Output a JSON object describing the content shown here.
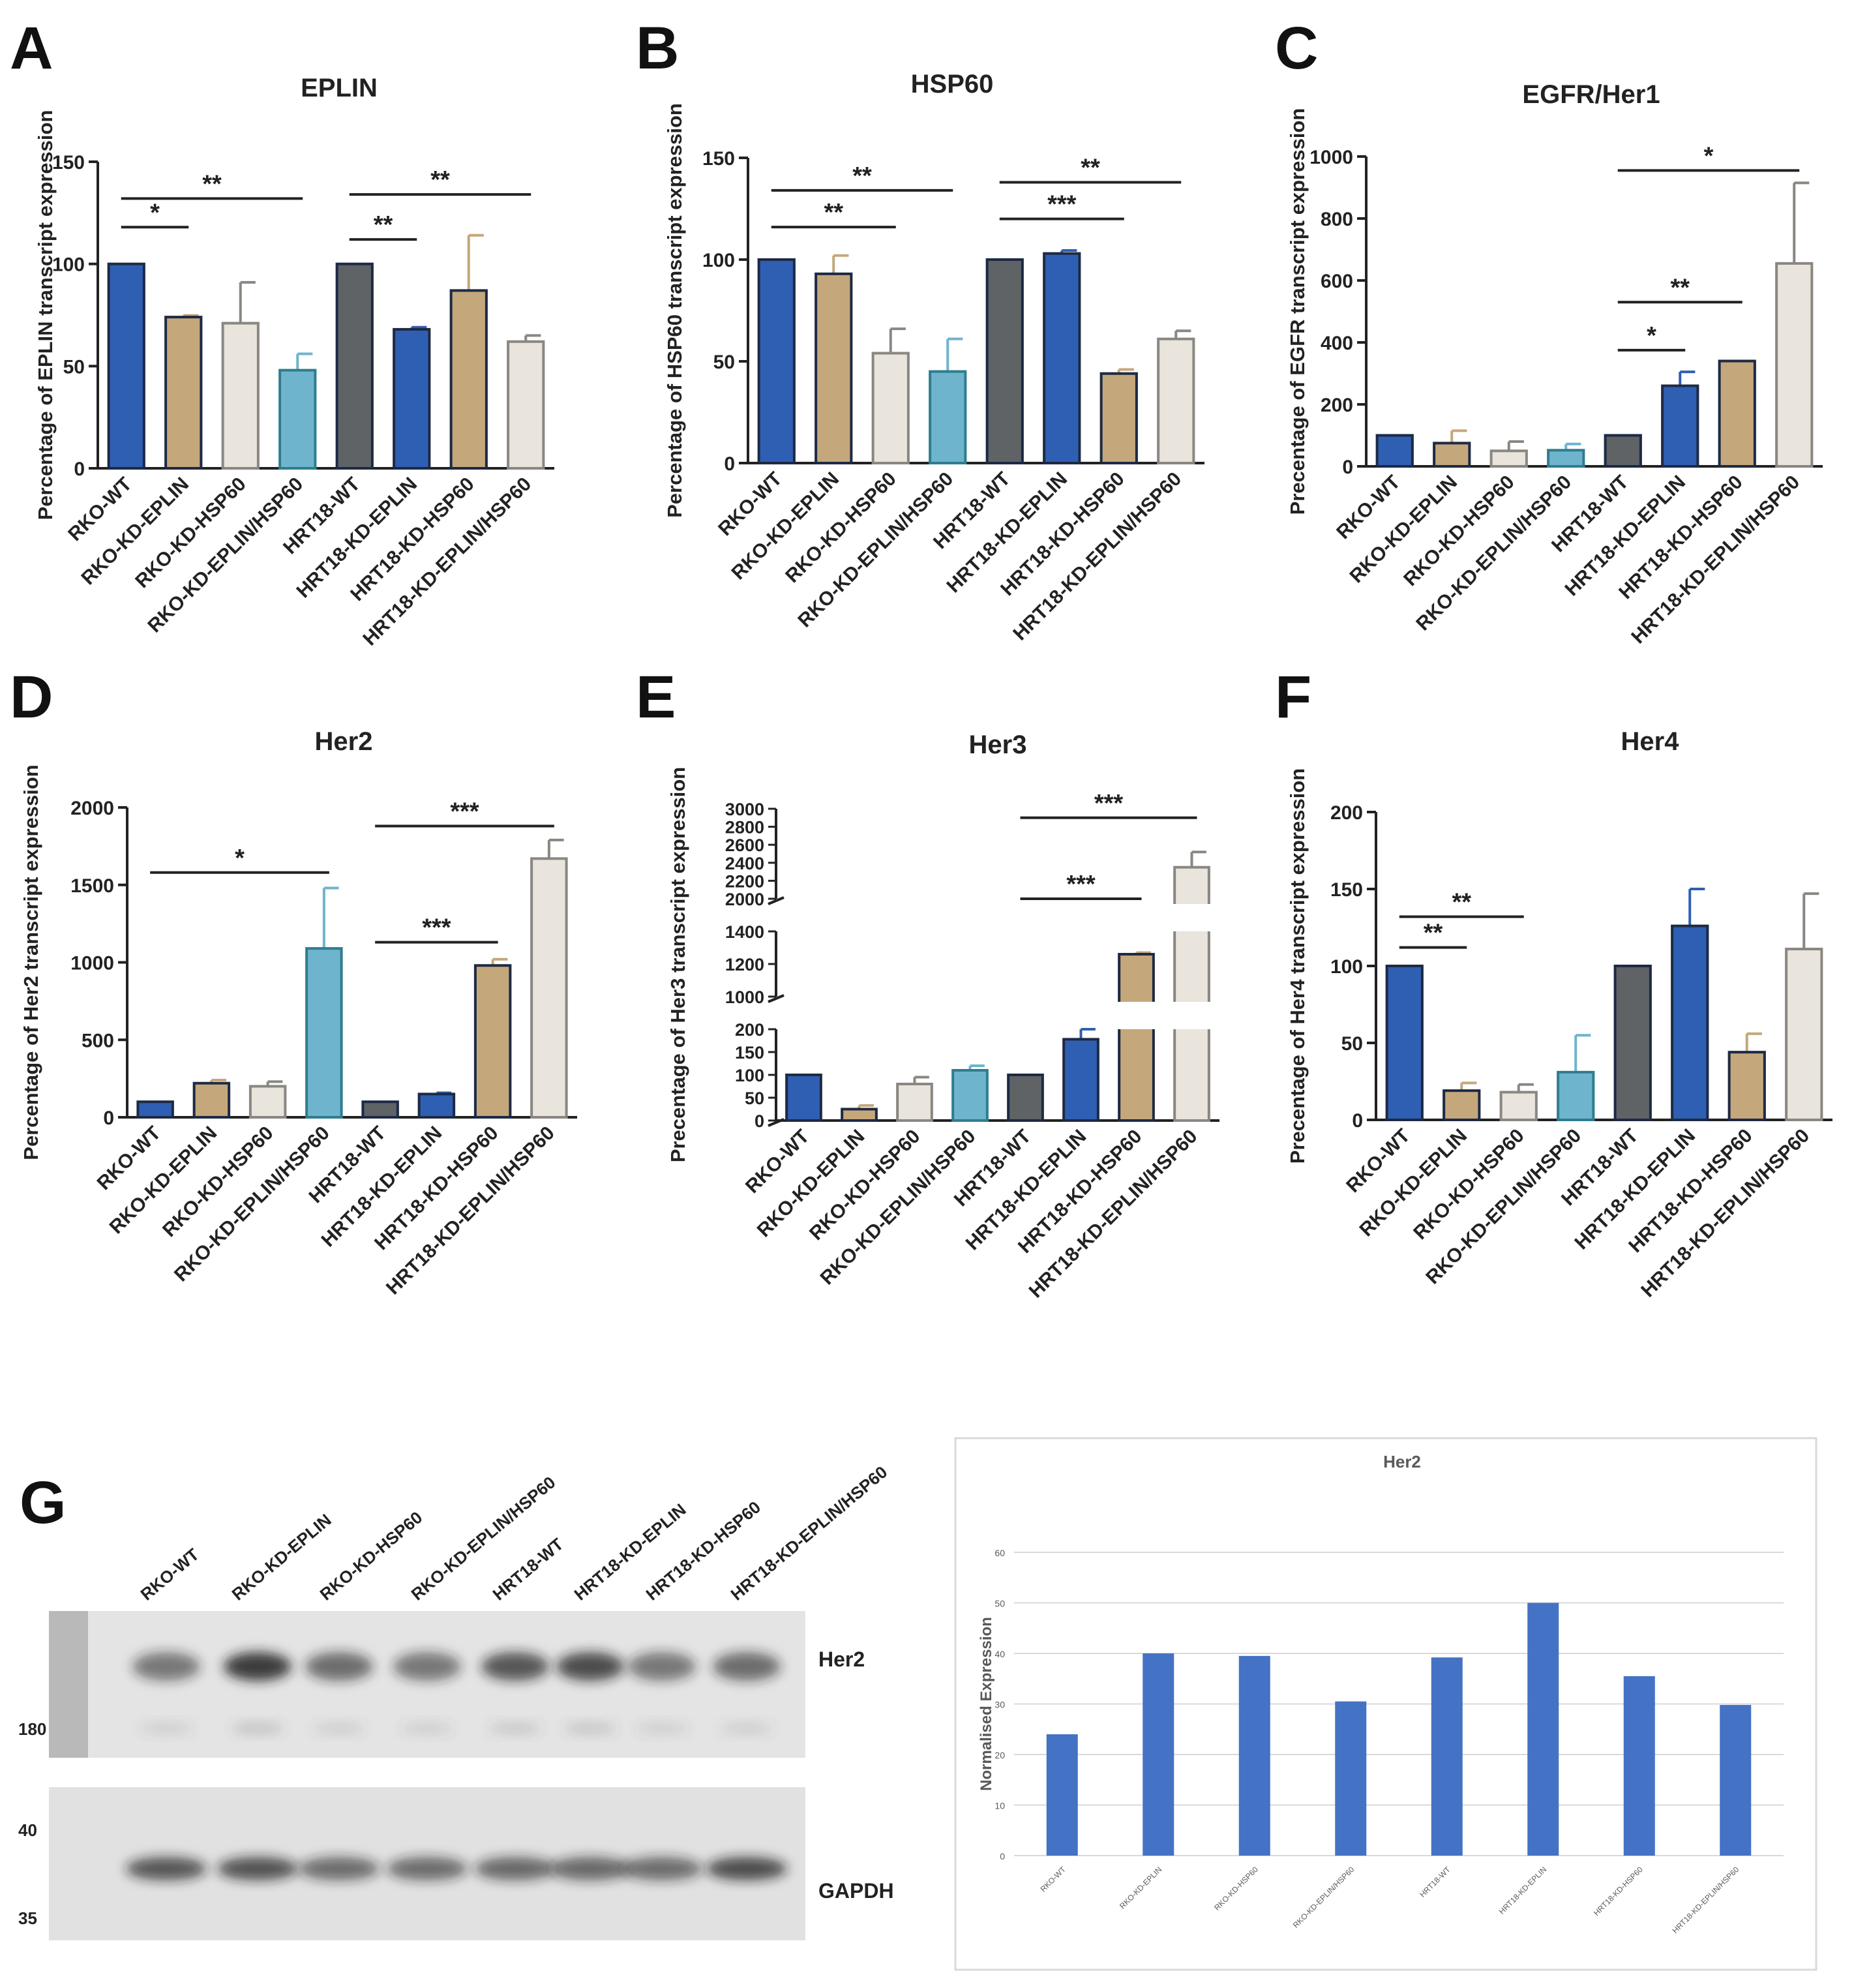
{
  "colors": {
    "blue": "#2f5fb3",
    "tan": "#c4a77b",
    "cream": "#e9e4dc",
    "cyan": "#6fb4cd",
    "gray": "#5f6366",
    "excel_blue": "#4472c4"
  },
  "bar_palette": [
    "blue",
    "tan",
    "cream",
    "cyan",
    "gray",
    "blue",
    "tan",
    "cream"
  ],
  "categories": [
    "RKO-WT",
    "RKO-KD-EPLIN",
    "RKO-KD-HSP60",
    "RKO-KD-EPLIN/HSP60",
    "HRT18-WT",
    "HRT18-KD-EPLIN",
    "HRT18-KD-HSP60",
    "HRT18-KD-EPLIN/HSP60"
  ],
  "chart_data": [
    {
      "panel": "A",
      "type": "bar",
      "title": "EPLIN",
      "ylabel": "Percentage of EPLIN transcript expression",
      "ylim": [
        0,
        150
      ],
      "yticks": [
        0,
        50,
        100,
        150
      ],
      "values": [
        100,
        74,
        71,
        48,
        100,
        68,
        87,
        62
      ],
      "errors": [
        0,
        0.8,
        20,
        8,
        0,
        1,
        27,
        3
      ],
      "significance": [
        {
          "from": 0,
          "to": 1,
          "label": "*",
          "level": 118
        },
        {
          "from": 0,
          "to": 3,
          "label": "**",
          "level": 132
        },
        {
          "from": 4,
          "to": 5,
          "label": "**",
          "level": 112
        },
        {
          "from": 4,
          "to": 7,
          "label": "**",
          "level": 134
        }
      ]
    },
    {
      "panel": "B",
      "type": "bar",
      "title": "HSP60",
      "ylabel": "Percentage of HSP60 transcript expression",
      "ylim": [
        0,
        150
      ],
      "yticks": [
        0,
        50,
        100,
        150
      ],
      "values": [
        100,
        93,
        54,
        45,
        100,
        103,
        44,
        61
      ],
      "errors": [
        0,
        9,
        12,
        16,
        0,
        1.5,
        2,
        4
      ],
      "significance": [
        {
          "from": 0,
          "to": 2,
          "label": "**",
          "level": 116
        },
        {
          "from": 0,
          "to": 3,
          "label": "**",
          "level": 134
        },
        {
          "from": 4,
          "to": 6,
          "label": "***",
          "level": 120
        },
        {
          "from": 4,
          "to": 7,
          "label": "**",
          "level": 138
        }
      ]
    },
    {
      "panel": "C",
      "type": "bar",
      "title": "EGFR/Her1",
      "ylabel": "Precentage of EGFR transcript expression",
      "ylim": [
        0,
        1000
      ],
      "yticks": [
        0,
        200,
        400,
        600,
        800,
        1000
      ],
      "values": [
        100,
        75,
        50,
        52,
        100,
        260,
        340,
        655
      ],
      "errors": [
        0,
        40,
        30,
        20,
        0,
        45,
        0,
        260
      ],
      "significance": [
        {
          "from": 4,
          "to": 5,
          "label": "*",
          "level": 375
        },
        {
          "from": 4,
          "to": 6,
          "label": "**",
          "level": 530
        },
        {
          "from": 4,
          "to": 7,
          "label": "*",
          "level": 955
        }
      ]
    },
    {
      "panel": "D",
      "type": "bar",
      "title": "Her2",
      "ylabel": "Percentage of Her2 transcript expression",
      "ylim": [
        0,
        2000
      ],
      "yticks": [
        0,
        500,
        1000,
        1500,
        2000
      ],
      "values": [
        100,
        220,
        200,
        1090,
        100,
        150,
        980,
        1670
      ],
      "errors": [
        0,
        20,
        30,
        390,
        0,
        8,
        40,
        120
      ],
      "significance": [
        {
          "from": 0,
          "to": 3,
          "label": "*",
          "level": 1580
        },
        {
          "from": 4,
          "to": 6,
          "label": "***",
          "level": 1130
        },
        {
          "from": 4,
          "to": 7,
          "label": "***",
          "level": 1880
        }
      ]
    },
    {
      "panel": "E",
      "type": "bar",
      "title": "Her3",
      "ylabel": "Precentage of Her3 transcript expression",
      "broken_axis": true,
      "yticks": [
        0,
        50,
        100,
        150,
        200,
        1000,
        1200,
        1400,
        2000,
        2200,
        2400,
        2600,
        2800,
        3000
      ],
      "values": [
        100,
        25,
        80,
        110,
        100,
        178,
        1260,
        2350
      ],
      "errors": [
        0,
        8,
        15,
        10,
        0,
        22,
        10,
        170
      ],
      "significance": [
        {
          "from": 4,
          "to": 6,
          "label": "***",
          "level": 1480
        },
        {
          "from": 4,
          "to": 7,
          "label": "***",
          "level": 2900
        }
      ]
    },
    {
      "panel": "F",
      "type": "bar",
      "title": "Her4",
      "ylabel": "Precentage of Her4 transcript expression",
      "ylim": [
        0,
        200
      ],
      "yticks": [
        0,
        50,
        100,
        150,
        200
      ],
      "values": [
        100,
        19,
        18,
        31,
        100,
        126,
        44,
        111
      ],
      "errors": [
        0,
        5,
        5,
        24,
        0,
        24,
        12,
        36
      ],
      "significance": [
        {
          "from": 0,
          "to": 1,
          "label": "**",
          "level": 112
        },
        {
          "from": 0,
          "to": 2,
          "label": "**",
          "level": 132
        }
      ]
    },
    {
      "panel": "G-right",
      "type": "bar",
      "title": "Her2",
      "ylabel": "Normalised Expression",
      "ylim": [
        0,
        60
      ],
      "yticks": [
        0,
        10,
        20,
        30,
        40,
        50,
        60
      ],
      "values": [
        24,
        40,
        39.5,
        30.5,
        39.2,
        50,
        35.5,
        29.8
      ]
    }
  ],
  "panel_letters": [
    "A",
    "B",
    "C",
    "D",
    "E",
    "F",
    "G"
  ],
  "blot": {
    "lane_labels": [
      "RKO-WT",
      "RKO-KD-EPLIN",
      "RKO-KD-HSP60",
      "RKO-KD-EPLIN/HSP60",
      "HRT18-WT",
      "HRT18-KD-EPLIN",
      "HRT18-KD-HSP60",
      "HRT18-KD-EPLIN/HSP60"
    ],
    "her2_label": "Her2",
    "gapdh_label": "GAPDH",
    "markers": [
      "180",
      "40",
      "35"
    ],
    "her2_intensity": [
      0.55,
      0.85,
      0.6,
      0.55,
      0.7,
      0.75,
      0.55,
      0.6
    ],
    "gapdh_intensity": [
      0.7,
      0.72,
      0.6,
      0.6,
      0.62,
      0.62,
      0.6,
      0.75
    ]
  }
}
